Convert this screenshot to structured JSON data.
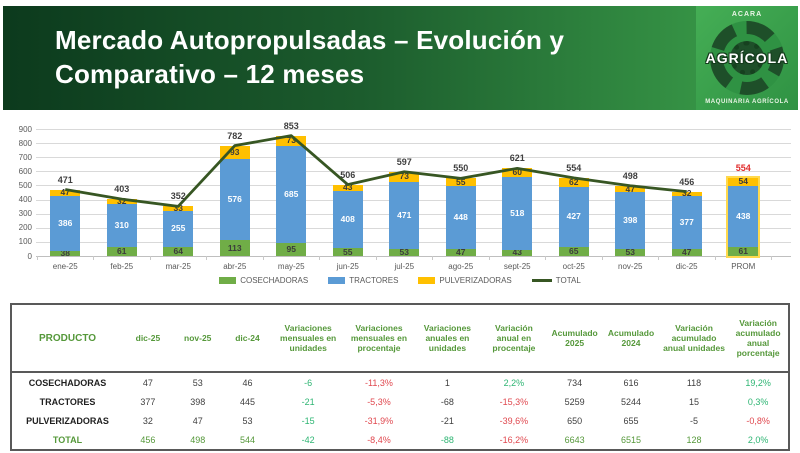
{
  "header": {
    "title": "Mercado Autopropulsadas – Evolución y Comparativo – 12 meses",
    "logo": {
      "top": "ACARA",
      "main": "AGRÍCOLA",
      "bottom": "MAQUINARIA AGRÍCOLA"
    }
  },
  "chart_data": {
    "type": "bar",
    "subtype": "stacked-bars-with-total-line",
    "categories": [
      "ene-25",
      "feb-25",
      "mar-25",
      "abr-25",
      "may-25",
      "jun-25",
      "jul-25",
      "ago-25",
      "sept-25",
      "oct-25",
      "nov-25",
      "dic-25",
      "PROM"
    ],
    "series": [
      {
        "name": "COSECHADORAS",
        "color": "#70AD47",
        "label_color": "#3b3b3b",
        "values": [
          38,
          61,
          64,
          113,
          95,
          55,
          53,
          47,
          43,
          65,
          53,
          47,
          61
        ]
      },
      {
        "name": "TRACTORES",
        "color": "#5B9BD5",
        "label_color": "#ffffff",
        "values": [
          386,
          310,
          255,
          576,
          685,
          408,
          471,
          448,
          518,
          427,
          398,
          377,
          438
        ]
      },
      {
        "name": "PULVERIZADORAS",
        "color": "#FFC000",
        "label_color": "#3b3b3b",
        "values": [
          47,
          32,
          33,
          93,
          73,
          43,
          73,
          55,
          60,
          62,
          47,
          32,
          54
        ]
      }
    ],
    "line": {
      "name": "TOTAL",
      "color": "#375623",
      "values": [
        471,
        403,
        352,
        782,
        853,
        506,
        597,
        550,
        621,
        554,
        498,
        456
      ]
    },
    "totals": [
      471,
      403,
      352,
      782,
      853,
      506,
      597,
      550,
      621,
      554,
      498,
      456,
      554
    ],
    "prom_total_color": "#e02b2b",
    "prom_outline_color": "#ffd94d",
    "title": "",
    "xlabel": "",
    "ylabel": "",
    "ylim": [
      0,
      900
    ],
    "ytick_step": 100,
    "grid": true,
    "legend": [
      "COSECHADORAS",
      "TRACTORES",
      "PULVERIZADORAS",
      "TOTAL"
    ],
    "legend_position": "bottom-center"
  },
  "table": {
    "headers": [
      "PRODUCTO",
      "dic-25",
      "nov-25",
      "dic-24",
      "Variaciones mensuales en unidades",
      "Variaciones mensuales en procentaje",
      "Variaciones anuales en unidades",
      "Variación anual en procentaje",
      "Acumulado 2025",
      "Acumulado 2024",
      "Variación acumulado anual unidades",
      "Variación acumulado anual porcentaje"
    ],
    "rows": [
      {
        "label": "COSECHADORAS",
        "label_color": "k",
        "cells": [
          [
            "47",
            "k"
          ],
          [
            "53",
            "k"
          ],
          [
            "46",
            "k"
          ],
          [
            "-6",
            "g"
          ],
          [
            "-11,3%",
            "r"
          ],
          [
            "1",
            "k"
          ],
          [
            "2,2%",
            "g"
          ],
          [
            "734",
            "k"
          ],
          [
            "616",
            "k"
          ],
          [
            "118",
            "k"
          ],
          [
            "19,2%",
            "g"
          ]
        ]
      },
      {
        "label": "TRACTORES",
        "label_color": "k",
        "cells": [
          [
            "377",
            "k"
          ],
          [
            "398",
            "k"
          ],
          [
            "445",
            "k"
          ],
          [
            "-21",
            "g"
          ],
          [
            "-5,3%",
            "r"
          ],
          [
            "-68",
            "k"
          ],
          [
            "-15,3%",
            "r"
          ],
          [
            "5259",
            "k"
          ],
          [
            "5244",
            "k"
          ],
          [
            "15",
            "k"
          ],
          [
            "0,3%",
            "g"
          ]
        ]
      },
      {
        "label": "PULVERIZADORAS",
        "label_color": "k",
        "cells": [
          [
            "32",
            "k"
          ],
          [
            "47",
            "k"
          ],
          [
            "53",
            "k"
          ],
          [
            "-15",
            "g"
          ],
          [
            "-31,9%",
            "r"
          ],
          [
            "-21",
            "k"
          ],
          [
            "-39,6%",
            "r"
          ],
          [
            "650",
            "k"
          ],
          [
            "655",
            "k"
          ],
          [
            "-5",
            "k"
          ],
          [
            "-0,8%",
            "r"
          ]
        ]
      },
      {
        "label": "TOTAL",
        "label_color": "t",
        "cells": [
          [
            "456",
            "t"
          ],
          [
            "498",
            "t"
          ],
          [
            "544",
            "t"
          ],
          [
            "-42",
            "g"
          ],
          [
            "-8,4%",
            "r"
          ],
          [
            "-88",
            "g"
          ],
          [
            "-16,2%",
            "r"
          ],
          [
            "6643",
            "t"
          ],
          [
            "6515",
            "t"
          ],
          [
            "128",
            "t"
          ],
          [
            "2,0%",
            "g"
          ]
        ]
      }
    ]
  }
}
